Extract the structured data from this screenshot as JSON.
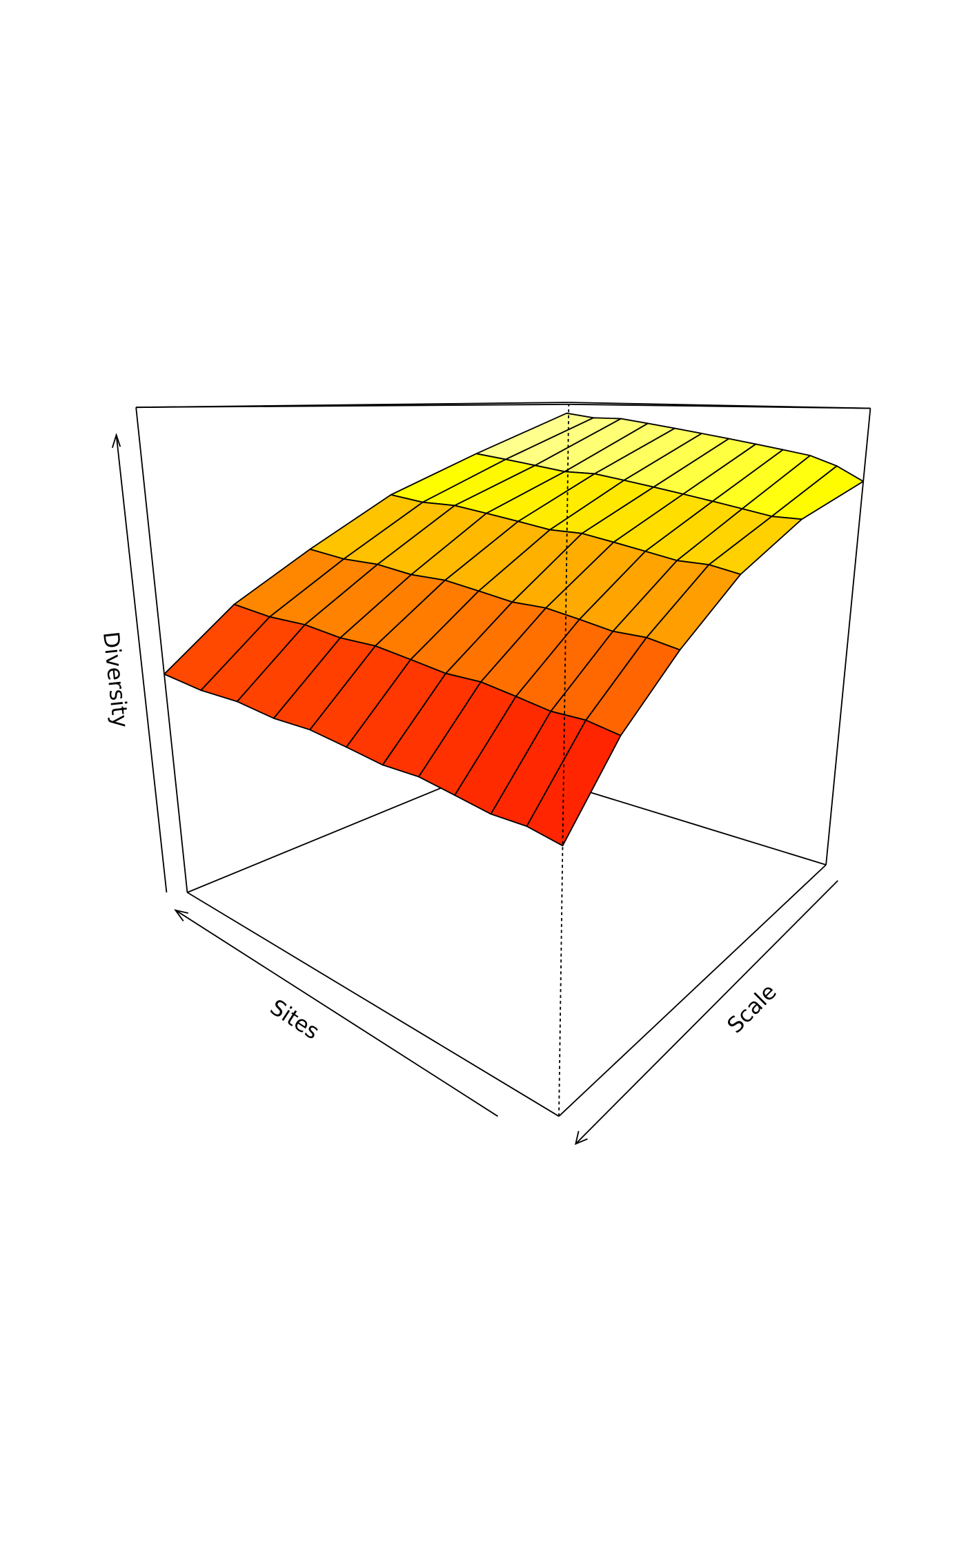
{
  "chart_data": {
    "type": "surface",
    "title": "",
    "xlabel": "Sites",
    "ylabel": "Scale",
    "zlabel": "Diversity",
    "zlim": [
      0,
      1
    ],
    "palette": "heat",
    "grid_rows": "Scale",
    "grid_cols": "Sites",
    "z": [
      [
        0.45,
        0.44,
        0.44,
        0.43,
        0.43,
        0.42,
        0.41,
        0.41,
        0.4,
        0.39,
        0.39,
        0.38
      ],
      [
        0.57,
        0.56,
        0.56,
        0.55,
        0.55,
        0.54,
        0.53,
        0.53,
        0.52,
        0.51,
        0.51,
        0.5
      ],
      [
        0.67,
        0.66,
        0.66,
        0.65,
        0.65,
        0.64,
        0.63,
        0.63,
        0.62,
        0.61,
        0.61,
        0.6
      ],
      [
        0.78,
        0.77,
        0.77,
        0.76,
        0.75,
        0.74,
        0.74,
        0.73,
        0.72,
        0.71,
        0.71,
        0.7
      ],
      [
        0.87,
        0.86,
        0.85,
        0.84,
        0.84,
        0.83,
        0.82,
        0.81,
        0.8,
        0.79,
        0.78,
        0.78
      ],
      [
        0.97,
        0.96,
        0.96,
        0.95,
        0.94,
        0.93,
        0.92,
        0.91,
        0.9,
        0.89,
        0.87,
        0.84
      ]
    ],
    "colors": {
      "line": "#000000",
      "background": "#ffffff"
    }
  }
}
